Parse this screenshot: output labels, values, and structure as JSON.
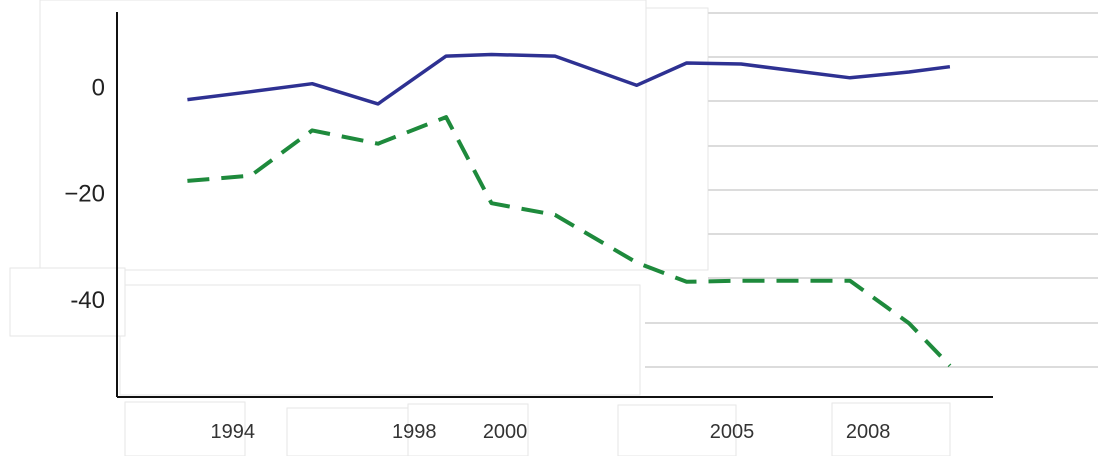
{
  "chart_data": {
    "type": "line",
    "title": "",
    "xlabel": "",
    "ylabel": "",
    "xlim": [
      1991.45,
      2010.75
    ],
    "ylim": [
      -58.5,
      14
    ],
    "x_ticks": [
      {
        "value": 1994,
        "label": "1994"
      },
      {
        "value": 1998,
        "label": "1998"
      },
      {
        "value": 2000,
        "label": "2000"
      },
      {
        "value": 2005,
        "label": "2005"
      },
      {
        "value": 2008,
        "label": "2008"
      }
    ],
    "y_ticks": [
      {
        "value": 0,
        "label": "0"
      },
      {
        "value": -20,
        "label": "−20"
      },
      {
        "value": -40,
        "label": "-40"
      }
    ],
    "grid": "horizontal (partial, right side)",
    "series": [
      {
        "color": "#2e3192",
        "style": "solid",
        "points": [
          [
            1993,
            -2.5
          ],
          [
            1994.4,
            -1
          ],
          [
            1995.75,
            0.5
          ],
          [
            1997.2,
            -3.3
          ],
          [
            1998.7,
            5.7
          ],
          [
            1999.7,
            6
          ],
          [
            2001.1,
            5.7
          ],
          [
            2002.9,
            0.2
          ],
          [
            2004,
            4.4
          ],
          [
            2005.2,
            4.2
          ],
          [
            2006.3,
            3
          ],
          [
            2007.6,
            1.6
          ],
          [
            2008.9,
            2.7
          ],
          [
            2009.8,
            3.7
          ]
        ]
      },
      {
        "color": "#1e8a3c",
        "style": "dashed",
        "points": [
          [
            1993,
            -17.8
          ],
          [
            1994.4,
            -16.8
          ],
          [
            1995.75,
            -8.3
          ],
          [
            1997.2,
            -10.8
          ],
          [
            1998.7,
            -5.8
          ],
          [
            1999.7,
            -22
          ],
          [
            2001.1,
            -24.2
          ],
          [
            2002.9,
            -33.2
          ],
          [
            2004,
            -36.8
          ],
          [
            2005.2,
            -36.6
          ],
          [
            2006.3,
            -36.6
          ],
          [
            2007.6,
            -36.6
          ],
          [
            2008.9,
            -44.6
          ],
          [
            2009.8,
            -52.6
          ]
        ]
      }
    ]
  }
}
